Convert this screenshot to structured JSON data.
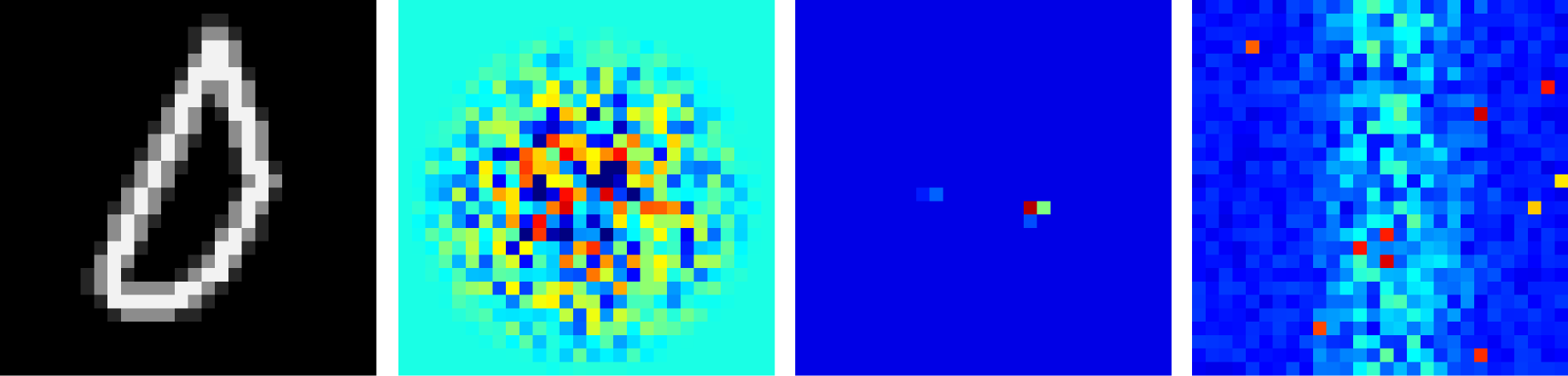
{
  "panels": [
    {
      "colormap": "gray"
    },
    {
      "colormap": "jet"
    },
    {
      "colormap": "jet"
    },
    {
      "colormap": "jet"
    }
  ]
}
